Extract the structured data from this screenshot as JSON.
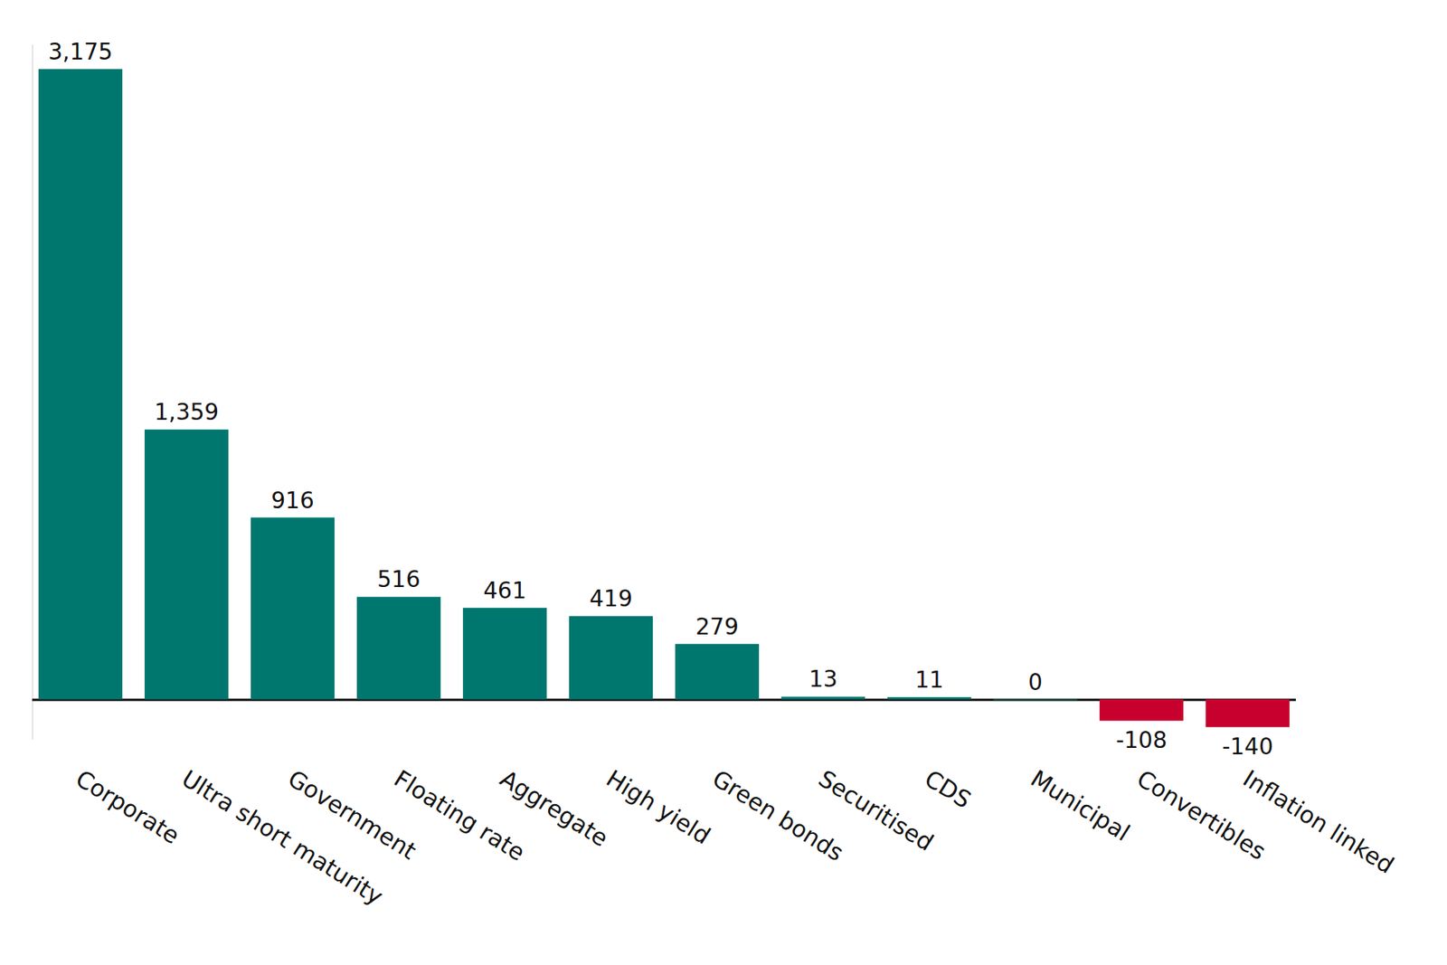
{
  "chart_data": {
    "type": "bar",
    "categories": [
      "Corporate",
      "Ultra short maturity",
      "Government",
      "Floating rate",
      "Aggregate",
      "High yield",
      "Green bonds",
      "Securitised",
      "CDS",
      "Municipal",
      "Convertibles",
      "Inflation linked"
    ],
    "values": [
      3175,
      1359,
      916,
      516,
      461,
      419,
      279,
      13,
      11,
      0,
      -108,
      -140
    ],
    "value_labels": [
      "3,175",
      "1,359",
      "916",
      "516",
      "461",
      "419",
      "279",
      "13",
      "11",
      "0",
      "-108",
      "-140"
    ],
    "colors": [
      "#00776e",
      "#00776e",
      "#00776e",
      "#00776e",
      "#00776e",
      "#00776e",
      "#00776e",
      "#00776e",
      "#00776e",
      "#00776e",
      "#c8002d",
      "#c8002d"
    ],
    "ylim": [
      -200,
      3300
    ],
    "yticks": [
      0
    ],
    "data_labels": true,
    "tick_labels": "x"
  }
}
